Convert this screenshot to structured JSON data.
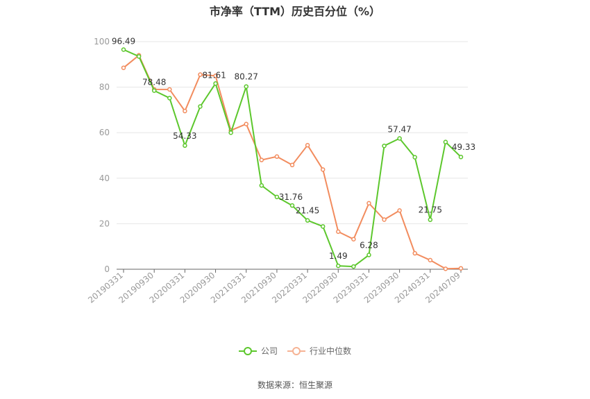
{
  "title": "市净率（TTM）历史百分位（%）",
  "source": "数据来源：恒生聚源",
  "colors": {
    "company": "#5cc72c",
    "industry": "#f28c5e",
    "grid": "#e6e6e6",
    "axis": "#999999"
  },
  "chart_data": {
    "type": "line",
    "title": "市净率（TTM）历史百分位（%）",
    "ylim": [
      0,
      100
    ],
    "yticks": [
      0,
      20,
      40,
      60,
      80,
      100
    ],
    "xtick_labels": [
      "20190331",
      "20190930",
      "20200331",
      "20200930",
      "20210331",
      "20210930",
      "20220331",
      "20220930",
      "20230331",
      "20230930",
      "20240331",
      "20240709"
    ],
    "grid": true,
    "legend_position": "bottom",
    "x": [
      "20190331",
      "20190630",
      "20190930",
      "20191231",
      "20200331",
      "20200630",
      "20200930",
      "20201231",
      "20210331",
      "20210630",
      "20210930",
      "20211231",
      "20220331",
      "20220630",
      "20220930",
      "20221231",
      "20230331",
      "20230630",
      "20230930",
      "20231231",
      "20240331",
      "20240630",
      "20240709"
    ],
    "series": [
      {
        "name": "公司",
        "color": "#5cc72c",
        "values": [
          96.49,
          93.5,
          78.48,
          75.2,
          54.33,
          71.5,
          81.61,
          60.0,
          80.27,
          36.8,
          31.76,
          28.0,
          21.45,
          18.8,
          1.49,
          1.2,
          6.28,
          54.2,
          57.47,
          49.2,
          21.75,
          55.9,
          49.33
        ],
        "labels": {
          "0": "96.49",
          "2": "78.48",
          "4": "54.33",
          "6": "81.61",
          "8": "80.27",
          "10": "31.76",
          "12": "21.45",
          "14": "1.49",
          "16": "6.28",
          "18": "57.47",
          "20": "21.75",
          "22": "49.33"
        }
      },
      {
        "name": "行业中位数",
        "color": "#f28c5e",
        "values": [
          88.5,
          94.0,
          79.0,
          79.0,
          69.5,
          85.5,
          85.0,
          61.0,
          63.8,
          48.0,
          49.5,
          45.8,
          54.5,
          43.8,
          16.5,
          13.2,
          29.0,
          21.8,
          25.8,
          7.0,
          4.0,
          0.2,
          0.4
        ]
      }
    ]
  }
}
